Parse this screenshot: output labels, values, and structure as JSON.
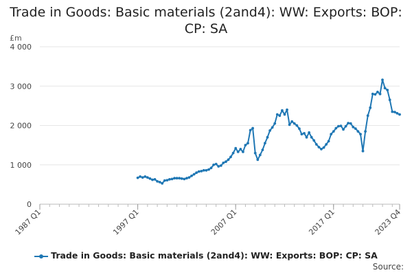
{
  "chart_data": {
    "type": "line",
    "title": "Trade in Goods: Basic materials (2and4): WW: Exports: BOP: CP: SA",
    "unit_label": "£m",
    "xlabel": "",
    "ylabel": "",
    "ylim": [
      0,
      4000
    ],
    "y_ticks": [
      "0",
      "1 000",
      "2 000",
      "3 000",
      "4 000"
    ],
    "y_tick_values": [
      0,
      1000,
      2000,
      3000,
      4000
    ],
    "x_ticks": [
      "1987 Q1",
      "1997 Q1",
      "2007 Q1",
      "2017 Q1",
      "2023 Q4"
    ],
    "x_tick_values": [
      1987.0,
      1997.0,
      2007.0,
      2017.0,
      2023.75
    ],
    "grid": true,
    "legend_position": "bottom",
    "series": [
      {
        "name": "Trade in Goods: Basic materials (2and4): WW: Exports: BOP: CP: SA",
        "color": "#1f77b4",
        "points": [
          [
            1997.0,
            670
          ],
          [
            1997.25,
            700
          ],
          [
            1997.5,
            680
          ],
          [
            1997.75,
            700
          ],
          [
            1998.0,
            680
          ],
          [
            1998.25,
            650
          ],
          [
            1998.5,
            620
          ],
          [
            1998.75,
            630
          ],
          [
            1999.0,
            580
          ],
          [
            1999.25,
            560
          ],
          [
            1999.5,
            530
          ],
          [
            1999.75,
            600
          ],
          [
            2000.0,
            610
          ],
          [
            2000.25,
            630
          ],
          [
            2000.5,
            640
          ],
          [
            2000.75,
            660
          ],
          [
            2001.0,
            660
          ],
          [
            2001.25,
            660
          ],
          [
            2001.5,
            650
          ],
          [
            2001.75,
            640
          ],
          [
            2002.0,
            660
          ],
          [
            2002.25,
            680
          ],
          [
            2002.5,
            720
          ],
          [
            2002.75,
            760
          ],
          [
            2003.0,
            800
          ],
          [
            2003.25,
            830
          ],
          [
            2003.5,
            840
          ],
          [
            2003.75,
            860
          ],
          [
            2004.0,
            860
          ],
          [
            2004.25,
            880
          ],
          [
            2004.5,
            920
          ],
          [
            2004.75,
            1000
          ],
          [
            2005.0,
            1020
          ],
          [
            2005.25,
            960
          ],
          [
            2005.5,
            980
          ],
          [
            2005.75,
            1050
          ],
          [
            2006.0,
            1080
          ],
          [
            2006.25,
            1130
          ],
          [
            2006.5,
            1200
          ],
          [
            2006.75,
            1300
          ],
          [
            2007.0,
            1420
          ],
          [
            2007.25,
            1330
          ],
          [
            2007.5,
            1400
          ],
          [
            2007.75,
            1330
          ],
          [
            2008.0,
            1500
          ],
          [
            2008.25,
            1550
          ],
          [
            2008.5,
            1880
          ],
          [
            2008.75,
            1930
          ],
          [
            2009.0,
            1300
          ],
          [
            2009.25,
            1130
          ],
          [
            2009.5,
            1250
          ],
          [
            2009.75,
            1380
          ],
          [
            2010.0,
            1550
          ],
          [
            2010.25,
            1700
          ],
          [
            2010.5,
            1870
          ],
          [
            2010.75,
            1950
          ],
          [
            2011.0,
            2050
          ],
          [
            2011.25,
            2280
          ],
          [
            2011.5,
            2250
          ],
          [
            2011.75,
            2380
          ],
          [
            2012.0,
            2280
          ],
          [
            2012.25,
            2400
          ],
          [
            2012.5,
            2020
          ],
          [
            2012.75,
            2100
          ],
          [
            2013.0,
            2050
          ],
          [
            2013.25,
            2000
          ],
          [
            2013.5,
            1920
          ],
          [
            2013.75,
            1780
          ],
          [
            2014.0,
            1800
          ],
          [
            2014.25,
            1700
          ],
          [
            2014.5,
            1820
          ],
          [
            2014.75,
            1700
          ],
          [
            2015.0,
            1620
          ],
          [
            2015.25,
            1520
          ],
          [
            2015.5,
            1450
          ],
          [
            2015.75,
            1400
          ],
          [
            2016.0,
            1440
          ],
          [
            2016.25,
            1520
          ],
          [
            2016.5,
            1600
          ],
          [
            2016.75,
            1780
          ],
          [
            2017.0,
            1850
          ],
          [
            2017.25,
            1930
          ],
          [
            2017.5,
            1980
          ],
          [
            2017.75,
            1990
          ],
          [
            2018.0,
            1900
          ],
          [
            2018.25,
            1980
          ],
          [
            2018.5,
            2060
          ],
          [
            2018.75,
            2050
          ],
          [
            2019.0,
            1960
          ],
          [
            2019.25,
            1920
          ],
          [
            2019.5,
            1850
          ],
          [
            2019.75,
            1780
          ],
          [
            2020.0,
            1350
          ],
          [
            2020.25,
            1850
          ],
          [
            2020.5,
            2250
          ],
          [
            2020.75,
            2450
          ],
          [
            2021.0,
            2800
          ],
          [
            2021.25,
            2790
          ],
          [
            2021.5,
            2850
          ],
          [
            2021.75,
            2800
          ],
          [
            2022.0,
            3160
          ],
          [
            2022.25,
            2950
          ],
          [
            2022.5,
            2900
          ],
          [
            2022.75,
            2650
          ],
          [
            2023.0,
            2350
          ],
          [
            2023.25,
            2340
          ],
          [
            2023.5,
            2310
          ],
          [
            2023.75,
            2280
          ]
        ]
      }
    ]
  },
  "footer": {
    "source_label": "Source:"
  }
}
